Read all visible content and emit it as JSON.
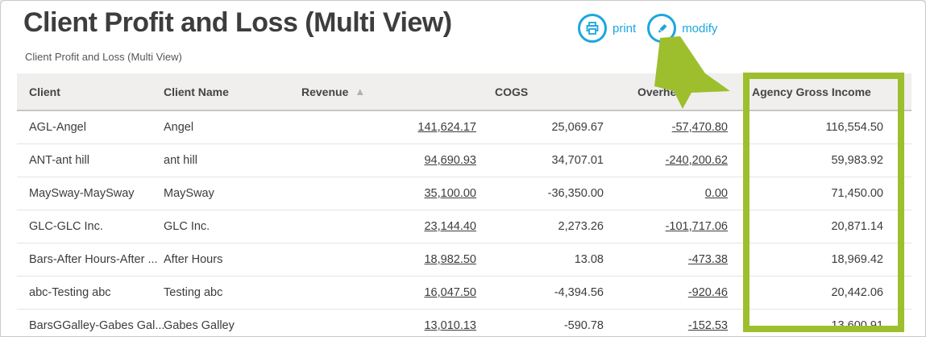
{
  "page": {
    "title": "Client Profit and Loss (Multi View)",
    "subtitle": "Client Profit and Loss (Multi View)"
  },
  "toolbar": {
    "print_label": "print",
    "modify_label": "modify",
    "icons": [
      "printer-icon",
      "pencil-icon"
    ]
  },
  "colors": {
    "accent_blue": "#1ca6e0",
    "annotation_green": "#9dbf2e",
    "header_bg": "#f0efee",
    "text_dark": "#3c3c3c"
  },
  "table": {
    "columns": [
      {
        "key": "client",
        "label": "Client",
        "align": "left",
        "link": false
      },
      {
        "key": "client_name",
        "label": "Client Name",
        "align": "left",
        "link": false
      },
      {
        "key": "revenue",
        "label": "Revenue",
        "align": "right",
        "link": true,
        "sorted": "asc"
      },
      {
        "key": "cogs",
        "label": "COGS",
        "align": "right",
        "link": false
      },
      {
        "key": "overhead",
        "label": "Overhead",
        "align": "right",
        "link": true
      },
      {
        "key": "agency_gross_income",
        "label": "Agency Gross Income",
        "align": "right",
        "link": false,
        "highlighted": true
      }
    ],
    "sort_icon": "▲",
    "rows": [
      {
        "client": "AGL-Angel",
        "client_name": "Angel",
        "revenue": "141,624.17",
        "cogs": "25,069.67",
        "overhead": "-57,470.80",
        "agency_gross_income": "116,554.50"
      },
      {
        "client": "ANT-ant hill",
        "client_name": "ant hill",
        "revenue": "94,690.93",
        "cogs": "34,707.01",
        "overhead": "-240,200.62",
        "agency_gross_income": "59,983.92"
      },
      {
        "client": "MaySway-MaySway",
        "client_name": "MaySway",
        "revenue": "35,100.00",
        "cogs": "-36,350.00",
        "overhead": "0.00",
        "agency_gross_income": "71,450.00"
      },
      {
        "client": "GLC-GLC Inc.",
        "client_name": "GLC Inc.",
        "revenue": "23,144.40",
        "cogs": "2,273.26",
        "overhead": "-101,717.06",
        "agency_gross_income": "20,871.14"
      },
      {
        "client": "Bars-After Hours-After ...",
        "client_name": "After Hours",
        "revenue": "18,982.50",
        "cogs": "13.08",
        "overhead": "-473.38",
        "agency_gross_income": "18,969.42"
      },
      {
        "client": "abc-Testing abc",
        "client_name": "Testing abc",
        "revenue": "16,047.50",
        "cogs": "-4,394.56",
        "overhead": "-920.46",
        "agency_gross_income": "20,442.06"
      },
      {
        "client": "BarsGGalley-Gabes Gal...",
        "client_name": "Gabes Galley",
        "revenue": "13,010.13",
        "cogs": "-590.78",
        "overhead": "-152.53",
        "agency_gross_income": "13,600.91"
      }
    ]
  },
  "annotations": {
    "highlight": "green box around Agency Gross Income column",
    "arrow": "green arrow pointing to highlighted column"
  }
}
